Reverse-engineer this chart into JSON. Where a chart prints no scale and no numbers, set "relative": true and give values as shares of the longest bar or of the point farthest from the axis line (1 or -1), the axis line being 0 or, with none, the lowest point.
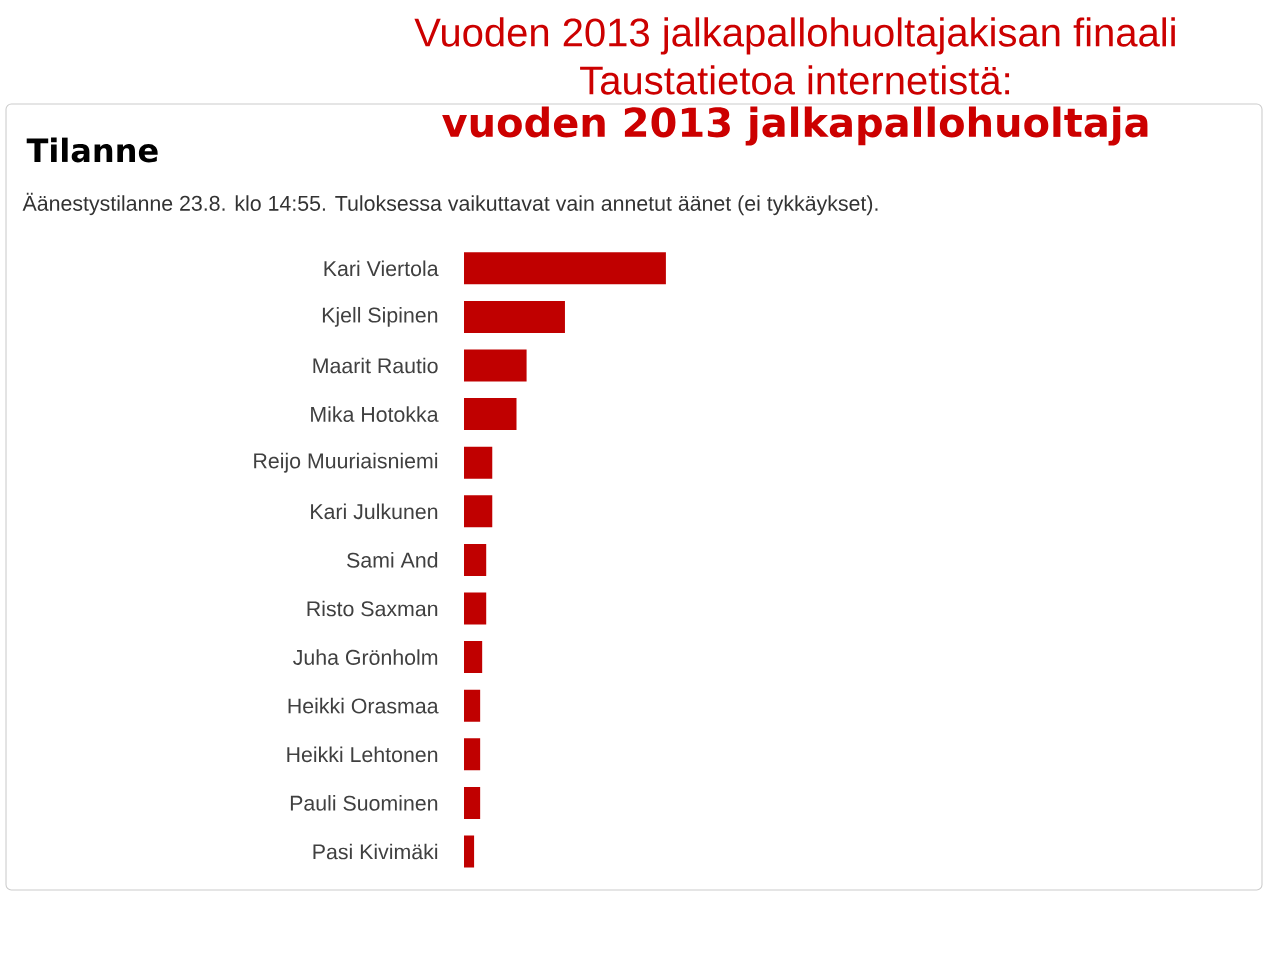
{
  "chart_data": {
    "type": "bar",
    "orientation": "horizontal",
    "relative": true,
    "title": "Vuoden 2013 jalkapallohuoltajakisan finaali",
    "subtitle": "Taustatietoa internetistä:",
    "annotations": [
      "vuoden 2013 jalkapallohuoltaja",
      "Tilanne",
      "Äänestystilanne 23.8. klo 14:55. Tuloksessa vaikuttavat vain annetut äänet (ei tykkäykset)."
    ],
    "categories": [
      "Kari Viertola",
      "Kjell Sipinen",
      "Maarit Rautio",
      "Mika Hotokka",
      "Reijo Muuriaisniemi",
      "Kari Julkunen",
      "Sami And",
      "Risto Saxman",
      "Juha Grönholm",
      "Heikki Orasmaa",
      "Heikki Lehtonen",
      "Pauli Suominen",
      "Pasi Kivimäki"
    ],
    "values": [
      1,
      0.5,
      0.31,
      0.26,
      0.14,
      0.14,
      0.11,
      0.11,
      0.09,
      0.08,
      0.08,
      0.08,
      0.05
    ],
    "color": "#c00000"
  }
}
